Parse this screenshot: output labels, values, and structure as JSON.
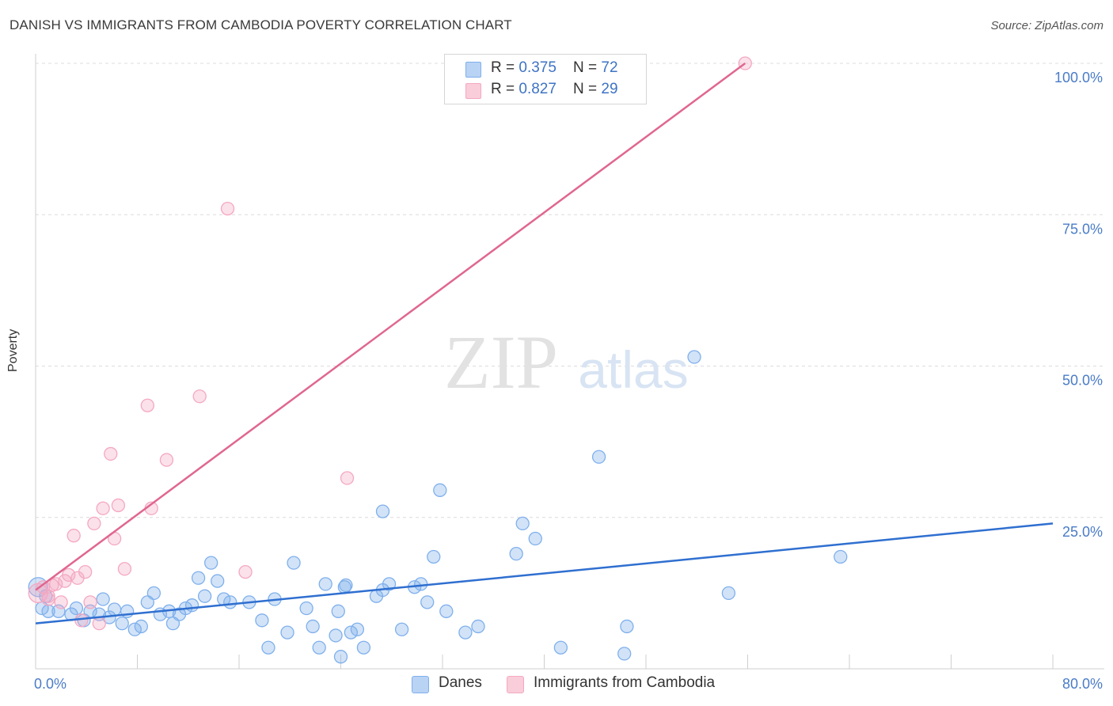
{
  "header": {
    "title": "DANISH VS IMMIGRANTS FROM CAMBODIA POVERTY CORRELATION CHART",
    "source": "Source: ZipAtlas.com"
  },
  "watermark": {
    "zip": "ZIP",
    "atlas": "atlas"
  },
  "chart_data": {
    "type": "scatter",
    "ylabel": "Poverty",
    "xlim": [
      0,
      80
    ],
    "ylim": [
      0,
      100
    ],
    "x_tick_labels": [
      "0.0%",
      "80.0%"
    ],
    "y_ticks": [
      25,
      50,
      75,
      100
    ],
    "y_tick_labels": [
      "25.0%",
      "50.0%",
      "75.0%",
      "100.0%"
    ],
    "grid": "horizontal dashed",
    "legend_placement": "top-center and bottom",
    "series": [
      {
        "name": "Danes",
        "color": "#7fb0ec",
        "line_color": "#2f6fd0",
        "R": "0.375",
        "N": "72",
        "trend": [
          [
            0,
            7.5
          ],
          [
            80,
            24.0
          ]
        ],
        "points": [
          [
            0.2,
            13.5
          ],
          [
            0.5,
            10.0
          ],
          [
            0.8,
            12.0
          ],
          [
            1.0,
            9.5
          ],
          [
            1.8,
            9.5
          ],
          [
            2.8,
            9.0
          ],
          [
            3.2,
            10.0
          ],
          [
            3.8,
            8.0
          ],
          [
            4.3,
            9.5
          ],
          [
            5.0,
            9.0
          ],
          [
            5.3,
            11.5
          ],
          [
            5.8,
            8.5
          ],
          [
            6.2,
            9.8
          ],
          [
            6.8,
            7.5
          ],
          [
            7.2,
            9.5
          ],
          [
            7.8,
            6.5
          ],
          [
            8.3,
            7.0
          ],
          [
            8.8,
            11.0
          ],
          [
            9.3,
            12.5
          ],
          [
            9.8,
            9.0
          ],
          [
            10.5,
            9.5
          ],
          [
            10.8,
            7.5
          ],
          [
            11.3,
            9.0
          ],
          [
            11.8,
            10.0
          ],
          [
            12.3,
            10.5
          ],
          [
            12.8,
            15.0
          ],
          [
            13.3,
            12.0
          ],
          [
            13.8,
            17.5
          ],
          [
            14.3,
            14.5
          ],
          [
            14.8,
            11.5
          ],
          [
            15.3,
            11.0
          ],
          [
            16.8,
            11.0
          ],
          [
            17.8,
            8.0
          ],
          [
            18.3,
            3.5
          ],
          [
            18.8,
            11.5
          ],
          [
            19.8,
            6.0
          ],
          [
            20.3,
            17.5
          ],
          [
            21.3,
            10.0
          ],
          [
            21.8,
            7.0
          ],
          [
            22.3,
            3.5
          ],
          [
            22.8,
            14.0
          ],
          [
            23.8,
            9.5
          ],
          [
            24.8,
            6.0
          ],
          [
            24.3,
            13.5
          ],
          [
            23.6,
            5.5
          ],
          [
            24.0,
            2.0
          ],
          [
            24.4,
            13.8
          ],
          [
            25.3,
            6.5
          ],
          [
            25.8,
            3.5
          ],
          [
            26.8,
            12.0
          ],
          [
            27.3,
            13.0
          ],
          [
            27.8,
            14.0
          ],
          [
            28.8,
            6.5
          ],
          [
            27.3,
            26.0
          ],
          [
            29.8,
            13.5
          ],
          [
            30.3,
            14.0
          ],
          [
            30.8,
            11.0
          ],
          [
            31.3,
            18.5
          ],
          [
            31.8,
            29.5
          ],
          [
            32.3,
            9.5
          ],
          [
            33.8,
            6.0
          ],
          [
            34.8,
            7.0
          ],
          [
            37.8,
            19.0
          ],
          [
            38.3,
            24.0
          ],
          [
            39.3,
            21.5
          ],
          [
            41.3,
            3.5
          ],
          [
            44.3,
            35.0
          ],
          [
            46.3,
            2.5
          ],
          [
            46.5,
            7.0
          ],
          [
            51.8,
            51.5
          ],
          [
            54.5,
            12.5
          ],
          [
            63.3,
            18.5
          ]
        ]
      },
      {
        "name": "Immigrants from Cambodia",
        "color": "#f4a8c2",
        "line_color": "#e0678f",
        "R": "0.827",
        "N": "29",
        "trend": [
          [
            0.0,
            13.0
          ],
          [
            55.8,
            100.0
          ]
        ],
        "points": [
          [
            0.2,
            12.5
          ],
          [
            0.6,
            13.5
          ],
          [
            1.0,
            11.5
          ],
          [
            1.3,
            13.8
          ],
          [
            1.6,
            14.0
          ],
          [
            2.0,
            11.0
          ],
          [
            2.3,
            14.5
          ],
          [
            2.6,
            15.5
          ],
          [
            3.0,
            22.0
          ],
          [
            3.3,
            15.0
          ],
          [
            3.6,
            8.0
          ],
          [
            3.9,
            16.0
          ],
          [
            4.3,
            11.0
          ],
          [
            4.6,
            24.0
          ],
          [
            5.0,
            7.5
          ],
          [
            5.3,
            26.5
          ],
          [
            5.9,
            35.5
          ],
          [
            6.2,
            21.5
          ],
          [
            6.5,
            27.0
          ],
          [
            7.0,
            16.5
          ],
          [
            8.8,
            43.5
          ],
          [
            9.1,
            26.5
          ],
          [
            10.3,
            34.5
          ],
          [
            12.9,
            45.0
          ],
          [
            15.1,
            76.0
          ],
          [
            16.5,
            16.0
          ],
          [
            24.5,
            31.5
          ],
          [
            55.8,
            100.0
          ],
          [
            1.0,
            12.0
          ]
        ]
      }
    ]
  }
}
